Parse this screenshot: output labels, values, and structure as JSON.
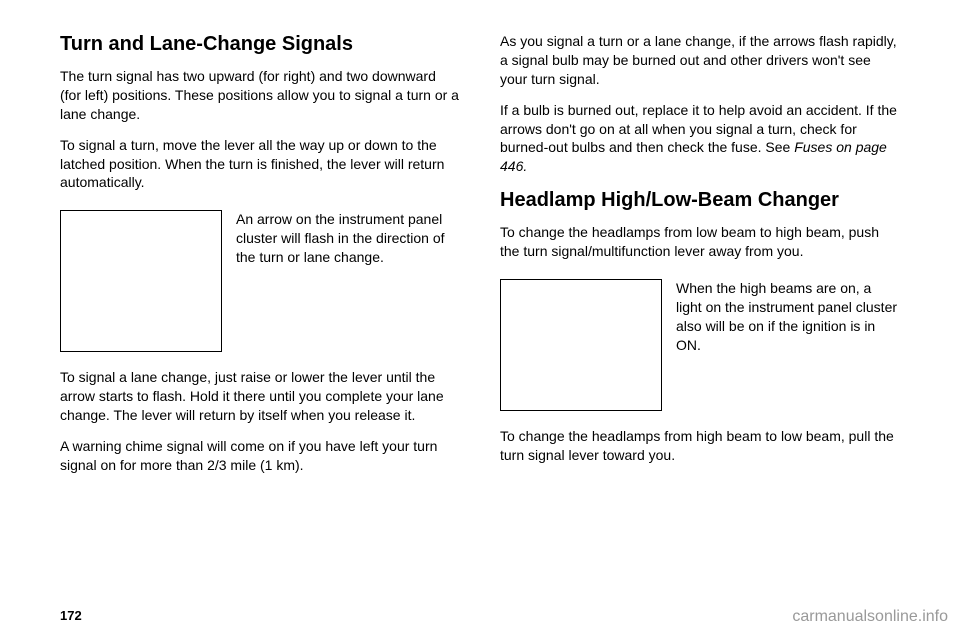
{
  "left": {
    "heading": "Turn and Lane-Change Signals",
    "p1": "The turn signal has two upward (for right) and two downward (for left) positions. These positions allow you to signal a turn or a lane change.",
    "p2": "To signal a turn, move the lever all the way up or down to the latched position. When the turn is finished, the lever will return automatically.",
    "fig_text": "An arrow on the instrument panel cluster will flash in the direction of the turn or lane change.",
    "p3": "To signal a lane change, just raise or lower the lever until the arrow starts to flash. Hold it there until you complete your lane change. The lever will return by itself when you release it.",
    "p4": "A warning chime signal will come on if you have left your turn signal on for more than 2/3 mile (1 km)."
  },
  "right": {
    "p1": "As you signal a turn or a lane change, if the arrows flash rapidly, a signal bulb may be burned out and other drivers won't see your turn signal.",
    "p2a": "If a bulb is burned out, replace it to help avoid an accident. If the arrows don't go on at all when you signal a turn, check for burned-out bulbs and then check the fuse. See ",
    "p2b": "Fuses on page 446.",
    "heading": "Headlamp High/Low-Beam Changer",
    "p3": "To change the headlamps from low beam to high beam, push the turn signal/multifunction lever away from you.",
    "fig_text": "When the high beams are on, a light on the instrument panel cluster also will be on if the ignition is in ON.",
    "p4": "To change the headlamps from high beam to low beam, pull the turn signal lever toward you."
  },
  "footer": {
    "pagenum": "172",
    "site": "carmanualsonline.info"
  },
  "style": {
    "figbox_left_w": 160,
    "figbox_left_h": 140,
    "figbox_right_w": 160,
    "figbox_right_h": 130
  }
}
